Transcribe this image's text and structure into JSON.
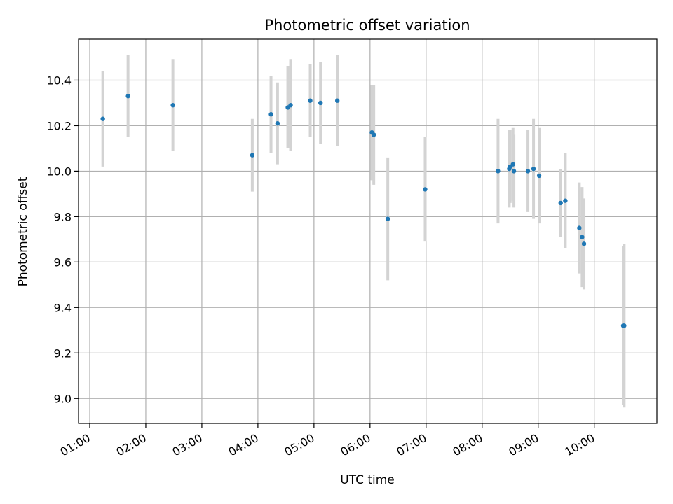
{
  "chart_data": {
    "type": "scatter",
    "title": "Photometric offset variation",
    "xlabel": "UTC time",
    "ylabel": "Photometric offset",
    "xlim": [
      "00:48",
      "11:07"
    ],
    "ylim": [
      8.89,
      10.58
    ],
    "grid": true,
    "x_ticks": [
      "01:00",
      "02:00",
      "03:00",
      "04:00",
      "05:00",
      "06:00",
      "07:00",
      "08:00",
      "09:00",
      "10:00"
    ],
    "y_ticks": [
      "9.0",
      "9.2",
      "9.4",
      "9.6",
      "9.8",
      "10.0",
      "10.2",
      "10.4"
    ],
    "colors": {
      "point": "#1f77b4",
      "errorbar": "#d3d3d3",
      "grid": "#b0b0b0"
    },
    "points": [
      {
        "x": "01:14",
        "y": 10.23,
        "yerr": 0.21
      },
      {
        "x": "01:41",
        "y": 10.33,
        "yerr": 0.18
      },
      {
        "x": "02:29",
        "y": 10.29,
        "yerr": 0.2
      },
      {
        "x": "03:54",
        "y": 10.07,
        "yerr": 0.16
      },
      {
        "x": "04:14",
        "y": 10.25,
        "yerr": 0.17
      },
      {
        "x": "04:21",
        "y": 10.21,
        "yerr": 0.18
      },
      {
        "x": "04:32",
        "y": 10.28,
        "yerr": 0.18
      },
      {
        "x": "04:35",
        "y": 10.29,
        "yerr": 0.2
      },
      {
        "x": "04:56",
        "y": 10.31,
        "yerr": 0.16
      },
      {
        "x": "05:07",
        "y": 10.3,
        "yerr": 0.18
      },
      {
        "x": "05:25",
        "y": 10.31,
        "yerr": 0.2
      },
      {
        "x": "06:02",
        "y": 10.17,
        "yerr": 0.21
      },
      {
        "x": "06:04",
        "y": 10.16,
        "yerr": 0.22
      },
      {
        "x": "06:19",
        "y": 9.79,
        "yerr": 0.27
      },
      {
        "x": "06:59",
        "y": 9.92,
        "yerr": 0.23
      },
      {
        "x": "08:17",
        "y": 10.0,
        "yerr": 0.23
      },
      {
        "x": "08:29",
        "y": 10.01,
        "yerr": 0.17
      },
      {
        "x": "08:30",
        "y": 10.02,
        "yerr": 0.16
      },
      {
        "x": "08:33",
        "y": 10.03,
        "yerr": 0.16
      },
      {
        "x": "08:34",
        "y": 10.0,
        "yerr": 0.16
      },
      {
        "x": "08:49",
        "y": 10.0,
        "yerr": 0.18
      },
      {
        "x": "08:55",
        "y": 10.01,
        "yerr": 0.22
      },
      {
        "x": "09:01",
        "y": 9.98,
        "yerr": 0.21
      },
      {
        "x": "09:24",
        "y": 9.86,
        "yerr": 0.15
      },
      {
        "x": "09:29",
        "y": 9.87,
        "yerr": 0.21
      },
      {
        "x": "09:44",
        "y": 9.75,
        "yerr": 0.2
      },
      {
        "x": "09:47",
        "y": 9.71,
        "yerr": 0.22
      },
      {
        "x": "09:49",
        "y": 9.68,
        "yerr": 0.2
      },
      {
        "x": "10:31",
        "y": 9.32,
        "yerr": 0.35
      },
      {
        "x": "10:32",
        "y": 9.32,
        "yerr": 0.36
      }
    ]
  }
}
